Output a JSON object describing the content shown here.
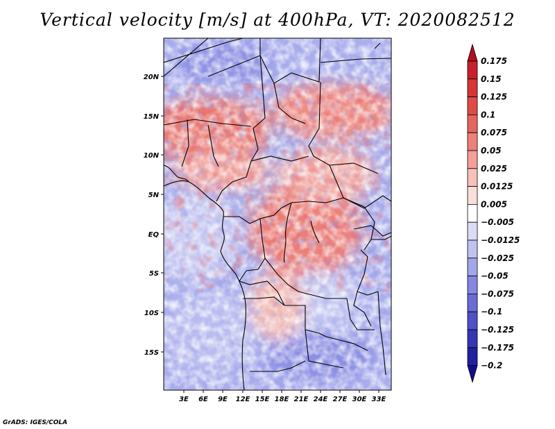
{
  "title": "Vertical velocity [m/s] at 400hPa, VT: 2020082512",
  "credit": "GrADS: IGES/COLA",
  "map": {
    "variable": "Vertical velocity",
    "units": "m/s",
    "level": "400hPa",
    "valid_time": "2020082512",
    "lat_labels": [
      "20N",
      "15N",
      "10N",
      "5N",
      "EQ",
      "5S",
      "10S",
      "15S"
    ],
    "lon_labels": [
      "3E",
      "6E",
      "9E",
      "12E",
      "15E",
      "18E",
      "21E",
      "24E",
      "27E",
      "30E",
      "33E"
    ]
  },
  "colorbar": {
    "labels": [
      "0.175",
      "0.15",
      "0.125",
      "0.1",
      "0.075",
      "0.05",
      "0.025",
      "0.0125",
      "0.005",
      "−0.005",
      "−0.0125",
      "−0.025",
      "−0.05",
      "−0.075",
      "−0.1",
      "−0.125",
      "−0.175",
      "−0.2"
    ],
    "colors": [
      "#b40f1e",
      "#c8202a",
      "#d73636",
      "#e04b48",
      "#e8655f",
      "#ef8079",
      "#f49f98",
      "#f8c0bb",
      "#fbdeda",
      "#ffffff",
      "#dcdcf6",
      "#c0c2f0",
      "#a2a6ea",
      "#8587e2",
      "#6b6bd8",
      "#5050c8",
      "#3636b4",
      "#2020a0",
      "#140e8c"
    ]
  }
}
